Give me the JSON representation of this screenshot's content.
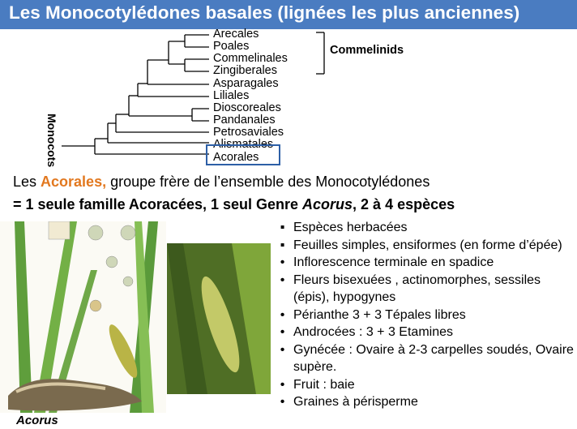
{
  "title": "Les Monocotylédones basales (lignées les plus anciennes)",
  "tree": {
    "leaves": [
      "Arecales",
      "Poales",
      "Commelinales",
      "Zingiberales",
      "Asparagales",
      "Liliales",
      "Dioscoreales",
      "Pandanales",
      "Petrosaviales",
      "Alismatales",
      "Acorales"
    ],
    "clade_label": "Monocots",
    "bracket_label": "Commelinids",
    "highlight": "Acorales"
  },
  "intro": {
    "prefix": "Les ",
    "highlight": "Acorales,",
    "rest": " groupe frère de l’ensemble des Monocotylédones",
    "line2_prefix": "= 1 seule famille Acoracées, 1 seul Genre ",
    "line2_genus": "Acorus",
    "line2_suffix": ", 2 à 4 espèces"
  },
  "features": [
    {
      "bullet": "square",
      "text": "Espèces herbacées"
    },
    {
      "bullet": "square",
      "text": "Feuilles simples, ensiformes (en forme d’épée)"
    },
    {
      "bullet": "dot",
      "text": "Inflorescence terminale en spadice"
    },
    {
      "bullet": "dot",
      "text": "Fleurs bisexuées , actinomorphes, sessiles (épis), hypogynes"
    },
    {
      "bullet": "dot",
      "text": "Périanthe 3 + 3  Tépales libres"
    },
    {
      "bullet": "dot",
      "text": "Androcées : 3 + 3 Etamines"
    },
    {
      "bullet": "dot",
      "text": "Gynécée : Ovaire à 2-3 carpelles soudés, Ovaire supère."
    },
    {
      "bullet": "dot",
      "text": "Fruit : baie"
    },
    {
      "bullet": "dot",
      "text": "Graines à périsperme"
    }
  ],
  "image_caption": "Acorus",
  "colors": {
    "title_bg": "#4a7cc1",
    "highlight": "#e2781f",
    "box": "#2d5fa6"
  }
}
